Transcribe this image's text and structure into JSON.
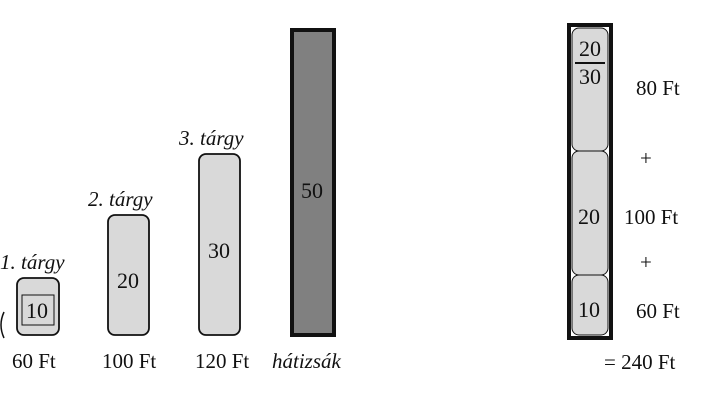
{
  "items": [
    {
      "label": "1. tárgy",
      "size": "10",
      "price": "60 Ft"
    },
    {
      "label": "2. tárgy",
      "size": "20",
      "price": "100 Ft"
    },
    {
      "label": "3. tárgy",
      "size": "30",
      "price": "120 Ft"
    }
  ],
  "knapsack": {
    "label": "hátizsák",
    "capacity": "50"
  },
  "solution": {
    "fraction": {
      "numerator": "20",
      "denominator": "30"
    },
    "segments": [
      {
        "size": "20",
        "price": "100 Ft"
      },
      {
        "size": "10",
        "price": "60 Ft"
      }
    ],
    "top_price": "80 Ft",
    "plus1": "+",
    "plus2": "+",
    "total": "= 240 Ft"
  },
  "colors": {
    "item_fill": "#d9d9d9",
    "knapsack_fill": "#808080",
    "stroke": "#111111"
  }
}
